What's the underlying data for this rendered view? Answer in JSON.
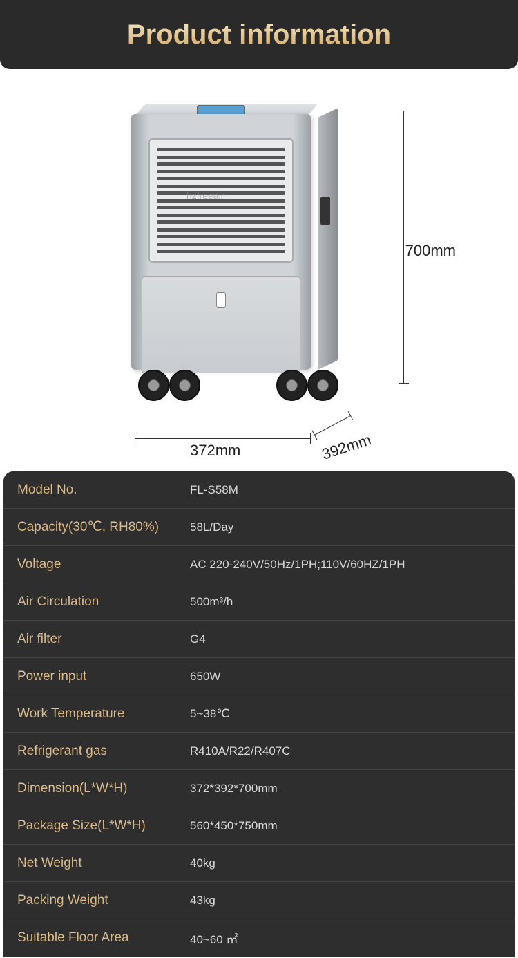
{
  "header": {
    "title": "Product information"
  },
  "diagram": {
    "watermark": "hzfreeair",
    "height_label": "700mm",
    "width_label": "372mm",
    "depth_label": "392mm",
    "vent_rows": 15,
    "colors": {
      "body_light": "#d0d4d8",
      "body_dark": "#9aa0a6",
      "display": "#5a9fd4",
      "vent": "#555555"
    }
  },
  "specs": {
    "rows": [
      {
        "label": "Model No.",
        "value": "FL-S58M"
      },
      {
        "label": "Capacity(30℃, RH80%)",
        "value": "58L/Day"
      },
      {
        "label": "Voltage",
        "value": "AC 220-240V/50Hz/1PH;110V/60HZ/1PH"
      },
      {
        "label": "Air Circulation",
        "value": "500m³/h"
      },
      {
        "label": "Air filter",
        "value": "G4"
      },
      {
        "label": "Power input",
        "value": "650W"
      },
      {
        "label": "Work Temperature",
        "value": "5~38℃"
      },
      {
        "label": "Refrigerant gas",
        "value": "R410A/R22/R407C"
      },
      {
        "label": "Dimension(L*W*H)",
        "value": "372*392*700mm"
      },
      {
        "label": "Package Size(L*W*H)",
        "value": "560*450*750mm"
      },
      {
        "label": "Net Weight",
        "value": "40kg"
      },
      {
        "label": "Packing Weight",
        "value": "43kg"
      },
      {
        "label": "Suitable Floor Area",
        "value": "40~60 ㎡"
      }
    ]
  },
  "styling": {
    "header_bg": "#2a2a2a",
    "table_bg": "#2e2e2e",
    "row_border": "#444444",
    "label_gradient_top": "#f0dcb8",
    "label_gradient_bottom": "#c89858",
    "value_color": "#d8d8d8",
    "title_gradient_top": "#f5e6c8",
    "title_gradient_bottom": "#d4a860",
    "label_fontsize": 19,
    "value_fontsize": 17,
    "title_fontsize": 40
  }
}
